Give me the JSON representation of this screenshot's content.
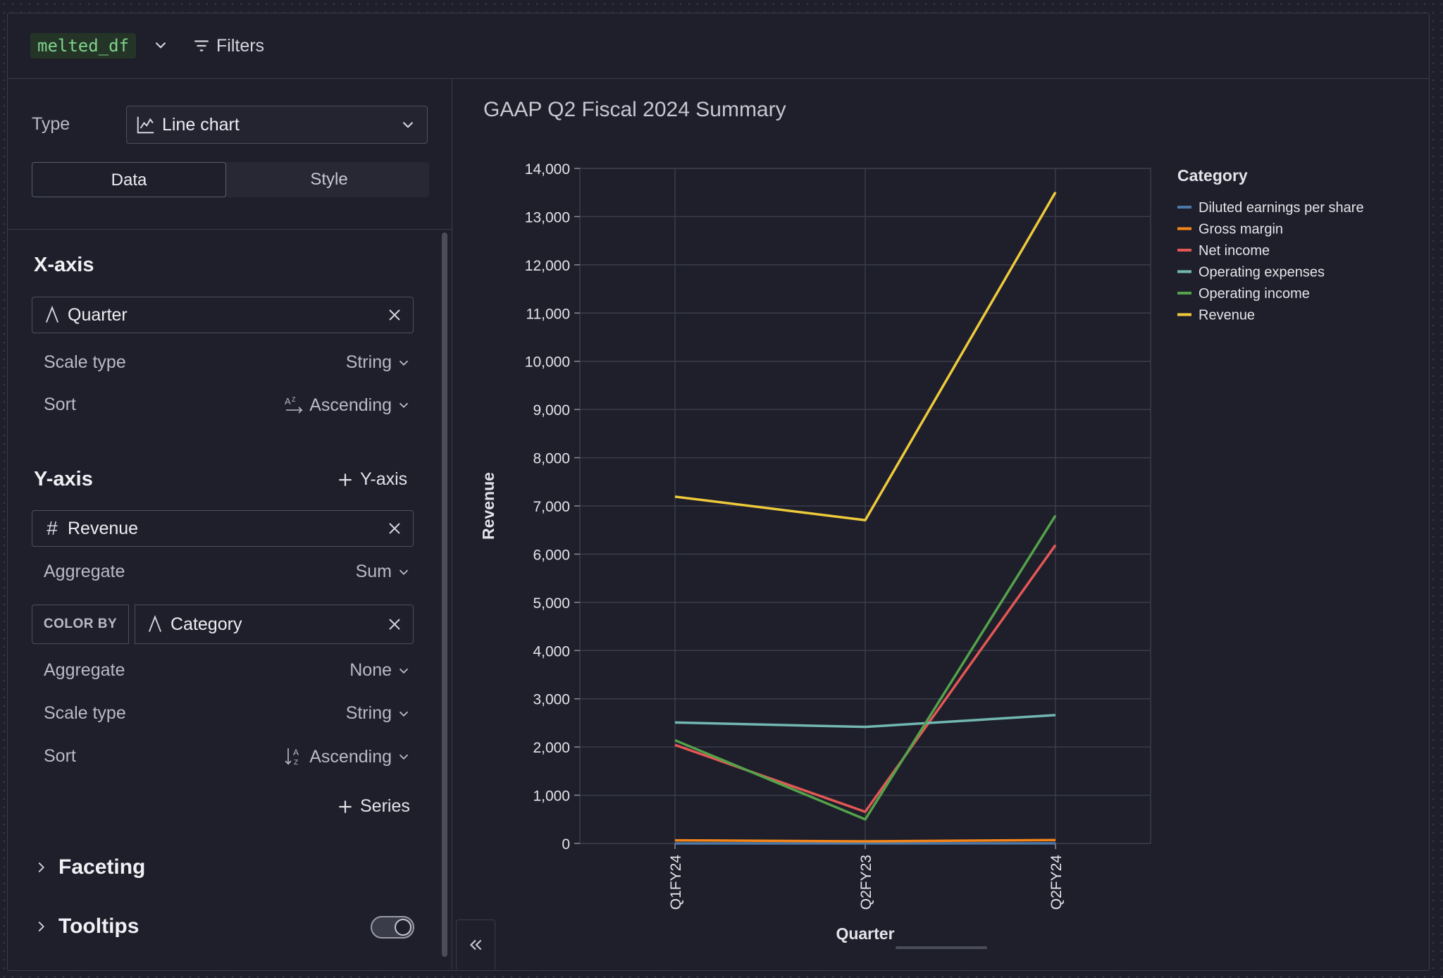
{
  "window": {
    "title": "GAAP Q2 Fiscal 2024 Summary"
  },
  "toolbar": {
    "dataframe": "melted_df",
    "filters_label": "Filters"
  },
  "config": {
    "type_label": "Type",
    "chart_type": "Line chart",
    "tabs": {
      "data": "Data",
      "style": "Style"
    },
    "x_axis": {
      "title": "X-axis",
      "field": "Quarter",
      "scale_type_label": "Scale type",
      "scale_type": "String",
      "sort_label": "Sort",
      "sort": "Ascending"
    },
    "y_axis": {
      "title": "Y-axis",
      "add_label": "Y-axis",
      "field": "Revenue",
      "aggregate_label": "Aggregate",
      "aggregate": "Sum"
    },
    "color_by": {
      "tag": "COLOR BY",
      "field": "Category",
      "aggregate_label": "Aggregate",
      "aggregate": "None",
      "scale_type_label": "Scale type",
      "scale_type": "String",
      "sort_label": "Sort",
      "sort": "Ascending"
    },
    "add_series_label": "Series",
    "faceting_label": "Faceting",
    "tooltips_label": "Tooltips",
    "tooltips_enabled": true
  },
  "chart_data": {
    "type": "line",
    "title": "GAAP Q2 Fiscal 2024 Summary",
    "xlabel": "Quarter",
    "ylabel": "Revenue",
    "categories": [
      "Q1FY24",
      "Q2FY23",
      "Q2FY24"
    ],
    "ylim": [
      0,
      14000
    ],
    "yticks": [
      0,
      1000,
      2000,
      3000,
      4000,
      5000,
      6000,
      7000,
      8000,
      9000,
      10000,
      11000,
      12000,
      13000,
      14000
    ],
    "legend_title": "Category",
    "legend_position": "right",
    "grid": true,
    "series": [
      {
        "name": "Diluted earnings per share",
        "color": "#4c78a8",
        "values": [
          0.82,
          0.26,
          2.48
        ]
      },
      {
        "name": "Gross margin",
        "color": "#f58518",
        "values": [
          64.6,
          43.5,
          70.1
        ]
      },
      {
        "name": "Net income",
        "color": "#e45756",
        "values": [
          2043,
          656,
          6188
        ]
      },
      {
        "name": "Operating expenses",
        "color": "#72b7b2",
        "values": [
          2508,
          2416,
          2662
        ]
      },
      {
        "name": "Operating income",
        "color": "#54a24b",
        "values": [
          2140,
          499,
          6800
        ]
      },
      {
        "name": "Revenue",
        "color": "#eeca3b",
        "values": [
          7192,
          6704,
          13507
        ]
      }
    ]
  }
}
